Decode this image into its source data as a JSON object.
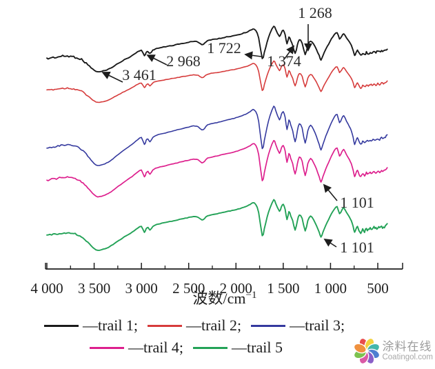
{
  "chart_data": {
    "type": "line",
    "title": "",
    "xlabel": "波数/cm⁻¹",
    "xlabel_base": "波数/cm",
    "xlabel_sup": "−1",
    "x_axis_reversed": true,
    "grid": false,
    "legend_position": "bottom",
    "x_ticks": [
      "4 000",
      "3 500",
      "3 000",
      "2 500",
      "2 000",
      "1 500",
      "1 000",
      "500"
    ],
    "x_tick_values": [
      4000,
      3500,
      3000,
      2500,
      2000,
      1500,
      1000,
      500
    ],
    "x_minor_tick_values": [
      3750,
      3250,
      2750,
      2250,
      1750,
      1250,
      750
    ],
    "x_data_range": [
      4000,
      400
    ],
    "series": [
      {
        "name": "trail 1",
        "color": "#1a1a1a",
        "band": [
          32,
          108
        ],
        "stroke": 1.9
      },
      {
        "name": "trail 2",
        "color": "#d63b3b",
        "band": [
          83,
          152
        ],
        "stroke": 1.6
      },
      {
        "name": "trail 3",
        "color": "#34399e",
        "band": [
          146,
          245
        ],
        "stroke": 1.6
      },
      {
        "name": "trail 4",
        "color": "#dd1f8d",
        "band": [
          196,
          290
        ],
        "stroke": 1.7
      },
      {
        "name": "trail 5",
        "color": "#23a257",
        "band": [
          283,
          367
        ],
        "stroke": 1.9
      }
    ],
    "shape_points": [
      [
        4000,
        0.3
      ],
      [
        3950,
        0.32
      ],
      [
        3900,
        0.33
      ],
      [
        3850,
        0.345
      ],
      [
        3800,
        0.35
      ],
      [
        3750,
        0.345
      ],
      [
        3700,
        0.33
      ],
      [
        3650,
        0.3
      ],
      [
        3600,
        0.24
      ],
      [
        3550,
        0.16
      ],
      [
        3500,
        0.08
      ],
      [
        3461,
        0.05
      ],
      [
        3420,
        0.06
      ],
      [
        3350,
        0.1
      ],
      [
        3300,
        0.15
      ],
      [
        3200,
        0.26
      ],
      [
        3100,
        0.36
      ],
      [
        3040,
        0.43
      ],
      [
        3000,
        0.46
      ],
      [
        2968,
        0.36
      ],
      [
        2950,
        0.42
      ],
      [
        2930,
        0.44
      ],
      [
        2910,
        0.4
      ],
      [
        2880,
        0.46
      ],
      [
        2850,
        0.49
      ],
      [
        2800,
        0.51
      ],
      [
        2700,
        0.545
      ],
      [
        2600,
        0.58
      ],
      [
        2500,
        0.615
      ],
      [
        2450,
        0.63
      ],
      [
        2400,
        0.62
      ],
      [
        2360,
        0.57
      ],
      [
        2330,
        0.6
      ],
      [
        2300,
        0.645
      ],
      [
        2200,
        0.68
      ],
      [
        2100,
        0.715
      ],
      [
        2000,
        0.75
      ],
      [
        1900,
        0.8
      ],
      [
        1850,
        0.84
      ],
      [
        1820,
        0.87
      ],
      [
        1790,
        0.84
      ],
      [
        1760,
        0.7
      ],
      [
        1722,
        0.3
      ],
      [
        1700,
        0.42
      ],
      [
        1670,
        0.62
      ],
      [
        1640,
        0.78
      ],
      [
        1600,
        0.92
      ],
      [
        1580,
        0.86
      ],
      [
        1540,
        0.72
      ],
      [
        1520,
        0.8
      ],
      [
        1500,
        0.84
      ],
      [
        1480,
        0.76
      ],
      [
        1460,
        0.58
      ],
      [
        1440,
        0.72
      ],
      [
        1420,
        0.64
      ],
      [
        1400,
        0.56
      ],
      [
        1374,
        0.4
      ],
      [
        1350,
        0.56
      ],
      [
        1330,
        0.66
      ],
      [
        1300,
        0.6
      ],
      [
        1268,
        0.38
      ],
      [
        1240,
        0.56
      ],
      [
        1210,
        0.64
      ],
      [
        1180,
        0.58
      ],
      [
        1150,
        0.48
      ],
      [
        1120,
        0.36
      ],
      [
        1101,
        0.28
      ],
      [
        1080,
        0.36
      ],
      [
        1050,
        0.48
      ],
      [
        1020,
        0.58
      ],
      [
        990,
        0.68
      ],
      [
        960,
        0.76
      ],
      [
        930,
        0.8
      ],
      [
        905,
        0.68
      ],
      [
        880,
        0.74
      ],
      [
        860,
        0.78
      ],
      [
        830,
        0.7
      ],
      [
        800,
        0.62
      ],
      [
        780,
        0.56
      ],
      [
        760,
        0.46
      ],
      [
        745,
        0.36
      ],
      [
        730,
        0.42
      ],
      [
        715,
        0.46
      ],
      [
        700,
        0.4
      ],
      [
        680,
        0.36
      ],
      [
        660,
        0.4
      ],
      [
        640,
        0.38
      ],
      [
        620,
        0.42
      ],
      [
        600,
        0.4
      ],
      [
        580,
        0.43
      ],
      [
        560,
        0.41
      ],
      [
        540,
        0.44
      ],
      [
        520,
        0.42
      ],
      [
        500,
        0.45
      ],
      [
        480,
        0.43
      ],
      [
        460,
        0.46
      ],
      [
        440,
        0.44
      ],
      [
        420,
        0.47
      ],
      [
        400,
        0.5
      ]
    ],
    "annotations": [
      {
        "label": "3 461",
        "wavenumber": 3461,
        "series": "trail 1",
        "text": [
          202,
          111
        ],
        "arrow": [
          178,
          119,
          149,
          105
        ]
      },
      {
        "label": "2 968",
        "wavenumber": 2968,
        "series": "trail 1",
        "text": [
          266,
          91
        ],
        "arrow": [
          242,
          94,
          214,
          80
        ]
      },
      {
        "label": "1 722",
        "wavenumber": 1722,
        "series": "trail 1",
        "text": [
          325,
          72
        ],
        "arrow": [
          379,
          82,
          356,
          79
        ]
      },
      {
        "label": "1 374",
        "wavenumber": 1374,
        "series": "trail 1",
        "text": [
          412,
          91
        ],
        "arrow": [
          413,
          85,
          426,
          67
        ]
      },
      {
        "label": "1 268",
        "wavenumber": 1268,
        "series": "trail 1",
        "text": [
          457,
          21
        ],
        "arrow": [
          447,
          35,
          447,
          73
        ]
      },
      {
        "label": "1 101",
        "wavenumber": 1101,
        "series": "trail 4",
        "text": [
          518,
          296
        ],
        "arrow": [
          489,
          291,
          470,
          268
        ]
      },
      {
        "label": "1 101",
        "wavenumber": 1101,
        "series": "trail 5",
        "text": [
          518,
          361
        ],
        "arrow": [
          488,
          358,
          471,
          347
        ]
      }
    ]
  },
  "legend": {
    "rows": [
      [
        {
          "label": "—trail 1;",
          "color": "#1a1a1a"
        },
        {
          "label": "—trail 2;",
          "color": "#d63b3b"
        },
        {
          "label": "—trail 3;",
          "color": "#34399e"
        }
      ],
      [
        {
          "label": "—trail 4;",
          "color": "#dd1f8d"
        },
        {
          "label": "—trail 5",
          "color": "#23a257"
        }
      ]
    ]
  },
  "watermark": {
    "cn": "涂料在线",
    "en": "Coatingol.com",
    "petal_colors": [
      "#e84c4c",
      "#f2d23f",
      "#43b6ab",
      "#4d7fd0",
      "#8a5fc8",
      "#da5aa6",
      "#7cc24f",
      "#f0913f"
    ]
  }
}
